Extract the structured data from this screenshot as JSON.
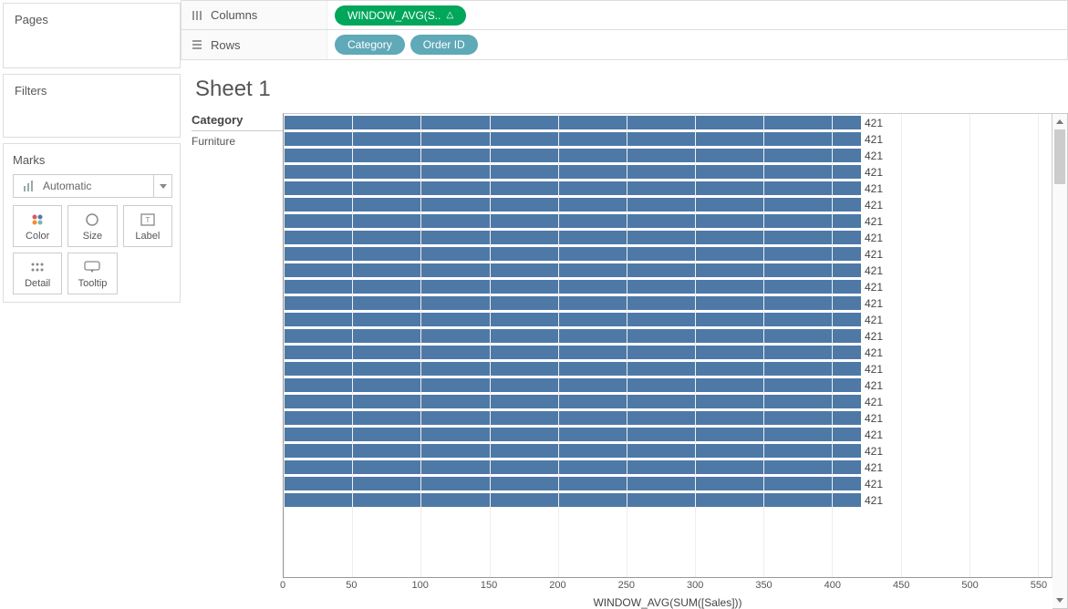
{
  "panels": {
    "pages": {
      "title": "Pages"
    },
    "filters": {
      "title": "Filters"
    },
    "marks": {
      "title": "Marks",
      "marktype": "Automatic",
      "cards": {
        "color": "Color",
        "size": "Size",
        "label": "Label",
        "detail": "Detail",
        "tooltip": "Tooltip"
      }
    }
  },
  "shelves": {
    "columns": {
      "label": "Columns",
      "pills": [
        {
          "text": "WINDOW_AVG(S..",
          "color": "green",
          "delta": true
        }
      ]
    },
    "rows": {
      "label": "Rows",
      "pills": [
        {
          "text": "Category",
          "color": "teal"
        },
        {
          "text": "Order ID",
          "color": "teal"
        }
      ]
    }
  },
  "viz": {
    "sheet_title": "Sheet 1",
    "row_header_title": "Category",
    "row_header_value": "Furniture",
    "x_axis_title": "WINDOW_AVG(SUM([Sales]))",
    "chart": {
      "type": "bar-horizontal",
      "bar_color": "#4e79a7",
      "background_color": "#ffffff",
      "gridline_color": "#eeeeee",
      "xlim": [
        0,
        560
      ],
      "x_ticks": [
        0,
        50,
        100,
        150,
        200,
        250,
        300,
        350,
        400,
        450,
        500,
        550
      ],
      "bar_value": 421,
      "bar_label": "421",
      "visible_bar_count": 24
    }
  },
  "colors": {
    "pill_green": "#00a65a",
    "pill_teal": "#5fa9b8",
    "bar": "#4e79a7"
  }
}
